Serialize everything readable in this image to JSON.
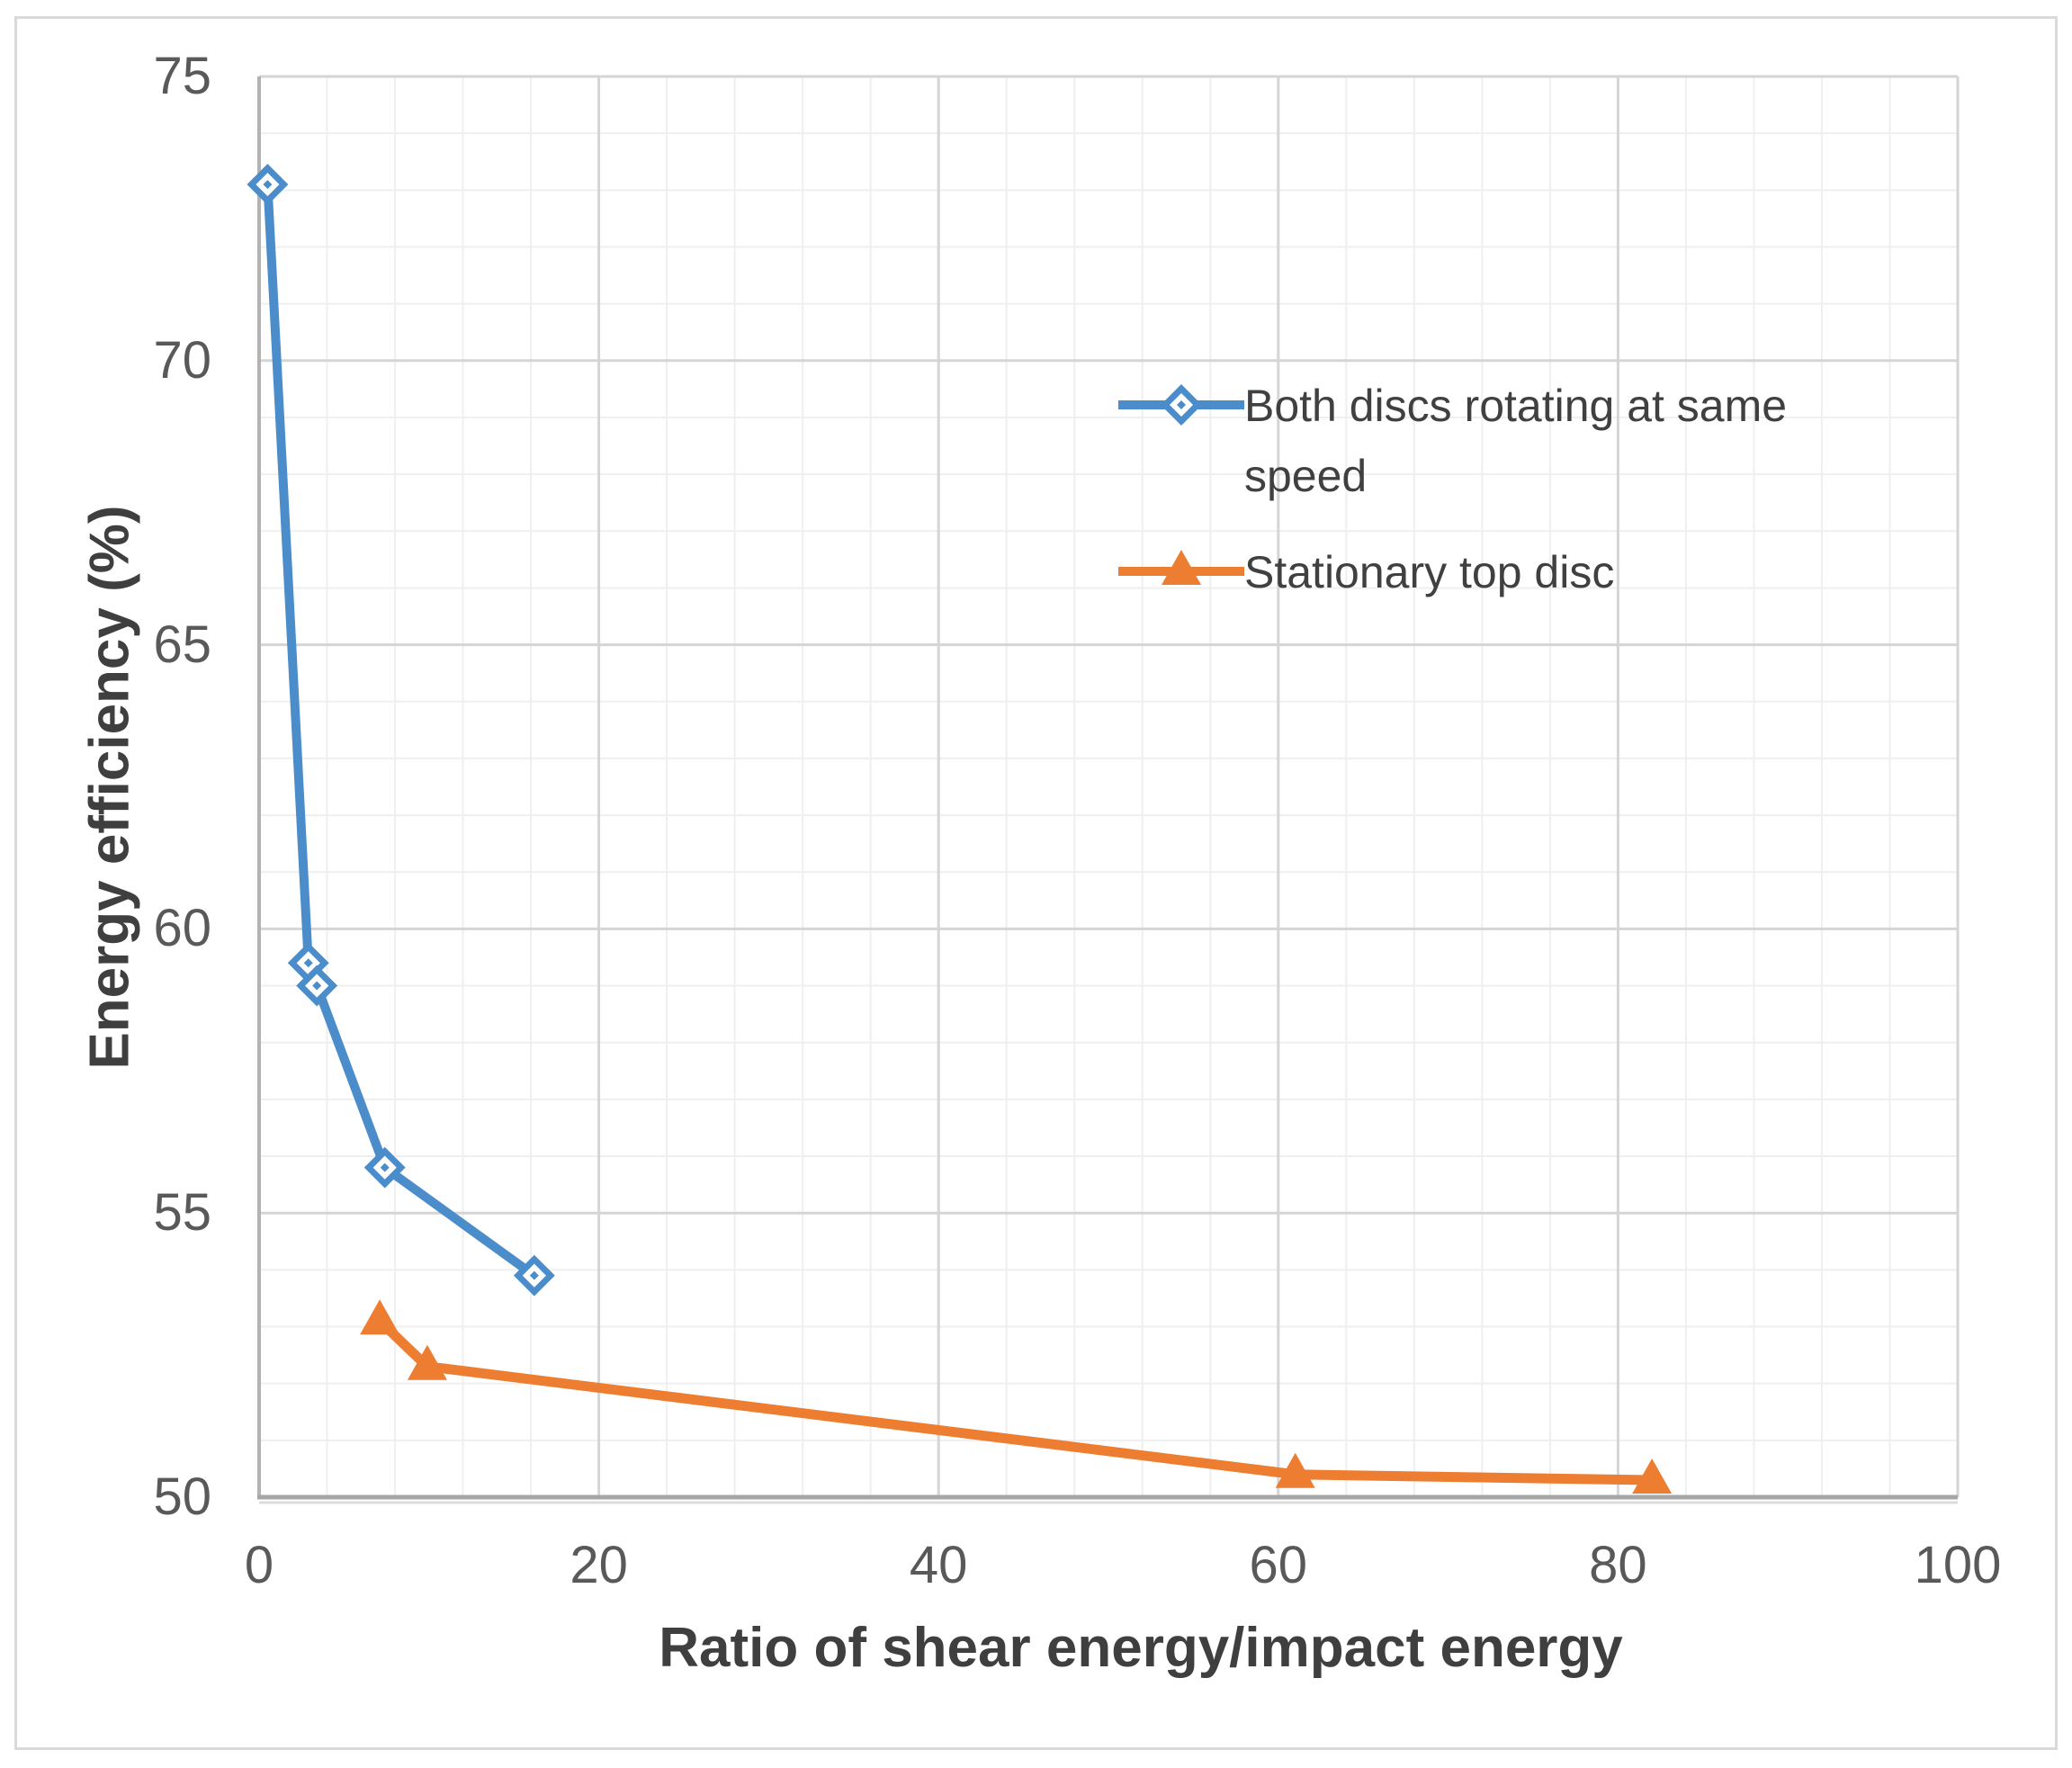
{
  "chart_data": {
    "type": "line",
    "title": "",
    "xlabel": "Ratio of shear energy/impact energy",
    "ylabel": "Energy efficiency (%)",
    "xlim": [
      0,
      100
    ],
    "ylim": [
      50,
      75
    ],
    "x_ticks": [
      0,
      20,
      40,
      60,
      80,
      100
    ],
    "y_ticks": [
      50,
      55,
      60,
      65,
      70,
      75
    ],
    "x_minor_step": 4,
    "y_minor_step": 1,
    "grid": {
      "major": true,
      "minor": true
    },
    "legend_position": "inside-top-right",
    "series": [
      {
        "name": "Both discs rotating at same speed",
        "color": "#4B8DCB",
        "marker": "open-diamond",
        "points": [
          [
            0.5,
            73.1
          ],
          [
            2.9,
            59.4
          ],
          [
            3.4,
            59.0
          ],
          [
            7.4,
            55.8
          ],
          [
            16.2,
            53.9
          ]
        ]
      },
      {
        "name": "Stationary top disc",
        "color": "#ED7D31",
        "marker": "filled-triangle",
        "points": [
          [
            7.1,
            53.1
          ],
          [
            9.9,
            52.3
          ],
          [
            61,
            50.4
          ],
          [
            82,
            50.3
          ]
        ]
      }
    ]
  },
  "colors": {
    "background": "#FFFFFF",
    "border": "#D9D9D9",
    "grid_minor": "#EFEFEF",
    "grid_major": "#D5D5D5",
    "axis_line_left": "#B3B3B3",
    "axis_line_bottom": "#A6A6A6",
    "axis_shadow": "#DCDCDC",
    "tick_text": "#595959",
    "axis_title_text": "#3F3F3F",
    "legend_text": "#404040"
  }
}
